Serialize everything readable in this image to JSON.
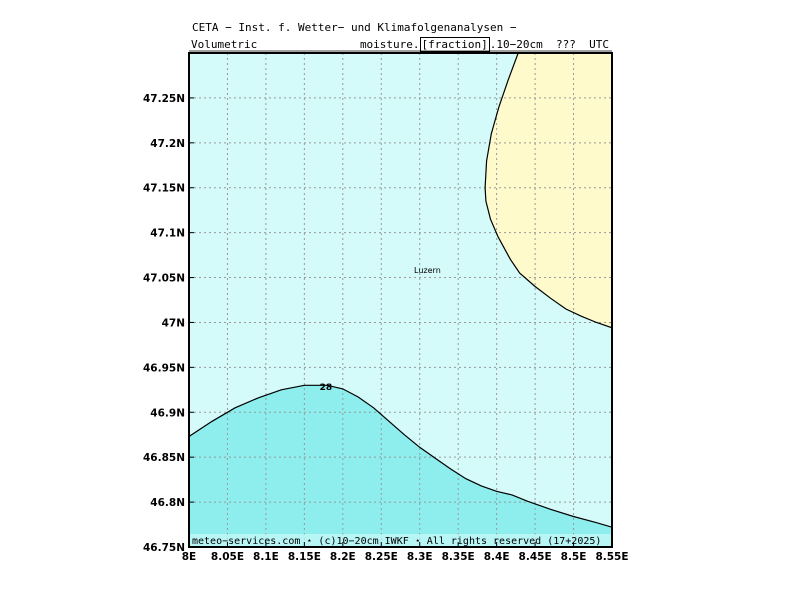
{
  "header": {
    "title": "CETA − Inst. f. Wetter− und Klimafolgenanalysen −",
    "subtitle_left": "Volumetric",
    "subtitle_right_pre": "moisture.",
    "subtitle_right_box": "[fraction]",
    "subtitle_right_post": ".10−20cm  ???  UTC"
  },
  "map": {
    "lon_range": [
      8.0,
      8.55
    ],
    "lat_range": [
      46.75,
      47.3
    ],
    "x_ticks": [
      {
        "value": 8.0,
        "label": "8E"
      },
      {
        "value": 8.05,
        "label": "8.05E"
      },
      {
        "value": 8.1,
        "label": "8.1E"
      },
      {
        "value": 8.15,
        "label": "8.15E"
      },
      {
        "value": 8.2,
        "label": "8.2E"
      },
      {
        "value": 8.25,
        "label": "8.25E"
      },
      {
        "value": 8.3,
        "label": "8.3E"
      },
      {
        "value": 8.35,
        "label": "8.35E"
      },
      {
        "value": 8.4,
        "label": "8.4E"
      },
      {
        "value": 8.45,
        "label": "8.45E"
      },
      {
        "value": 8.5,
        "label": "8.5E"
      },
      {
        "value": 8.55,
        "label": "8.55E"
      }
    ],
    "y_ticks": [
      {
        "value": 46.75,
        "label": "46.75N"
      },
      {
        "value": 46.8,
        "label": "46.8N"
      },
      {
        "value": 46.85,
        "label": "46.85N"
      },
      {
        "value": 46.9,
        "label": "46.9N"
      },
      {
        "value": 46.95,
        "label": "46.95N"
      },
      {
        "value": 47.0,
        "label": "47N"
      },
      {
        "value": 47.05,
        "label": "47.05N"
      },
      {
        "value": 47.1,
        "label": "47.1N"
      },
      {
        "value": 47.15,
        "label": "47.15N"
      },
      {
        "value": 47.2,
        "label": "47.2N"
      },
      {
        "value": 47.25,
        "label": "47.25N"
      }
    ],
    "grid": true,
    "colors": {
      "background_fill": "#d4fafa",
      "low_region_fill": "#8eeeee",
      "high_region_fill": "#fffacc",
      "grid_line": "#999999",
      "contour_line": "#000000"
    },
    "city": {
      "name": "Luzern",
      "lon": 8.31,
      "lat": 47.055
    },
    "contour_label": {
      "text": "28",
      "lon": 8.178,
      "lat": 46.928
    },
    "contours": [
      {
        "name": "lower-contour",
        "region": "low",
        "points": [
          [
            8.0,
            46.873
          ],
          [
            8.03,
            46.89
          ],
          [
            8.06,
            46.905
          ],
          [
            8.09,
            46.916
          ],
          [
            8.12,
            46.925
          ],
          [
            8.15,
            46.93
          ],
          [
            8.18,
            46.93
          ],
          [
            8.2,
            46.926
          ],
          [
            8.22,
            46.917
          ],
          [
            8.24,
            46.905
          ],
          [
            8.26,
            46.89
          ],
          [
            8.28,
            46.875
          ],
          [
            8.3,
            46.861
          ],
          [
            8.32,
            46.849
          ],
          [
            8.34,
            46.837
          ],
          [
            8.36,
            46.826
          ],
          [
            8.38,
            46.818
          ],
          [
            8.4,
            46.812
          ],
          [
            8.42,
            46.808
          ],
          [
            8.44,
            46.801
          ],
          [
            8.47,
            46.792
          ],
          [
            8.5,
            46.784
          ],
          [
            8.53,
            46.777
          ],
          [
            8.55,
            46.772
          ]
        ]
      },
      {
        "name": "upper-contour",
        "region": "high",
        "points": [
          [
            8.428,
            47.3
          ],
          [
            8.415,
            47.27
          ],
          [
            8.403,
            47.24
          ],
          [
            8.393,
            47.21
          ],
          [
            8.387,
            47.18
          ],
          [
            8.385,
            47.15
          ],
          [
            8.386,
            47.135
          ],
          [
            8.392,
            47.115
          ],
          [
            8.402,
            47.095
          ],
          [
            8.418,
            47.07
          ],
          [
            8.43,
            47.055
          ],
          [
            8.45,
            47.04
          ],
          [
            8.47,
            47.027
          ],
          [
            8.49,
            47.015
          ],
          [
            8.51,
            47.007
          ],
          [
            8.53,
            47.0
          ],
          [
            8.55,
            46.994
          ]
        ]
      }
    ]
  },
  "footer": {
    "text": "meteo−services.com ⋆ (c)10−20cm IWKF ⋆ All rights reserved (17+2025)"
  }
}
